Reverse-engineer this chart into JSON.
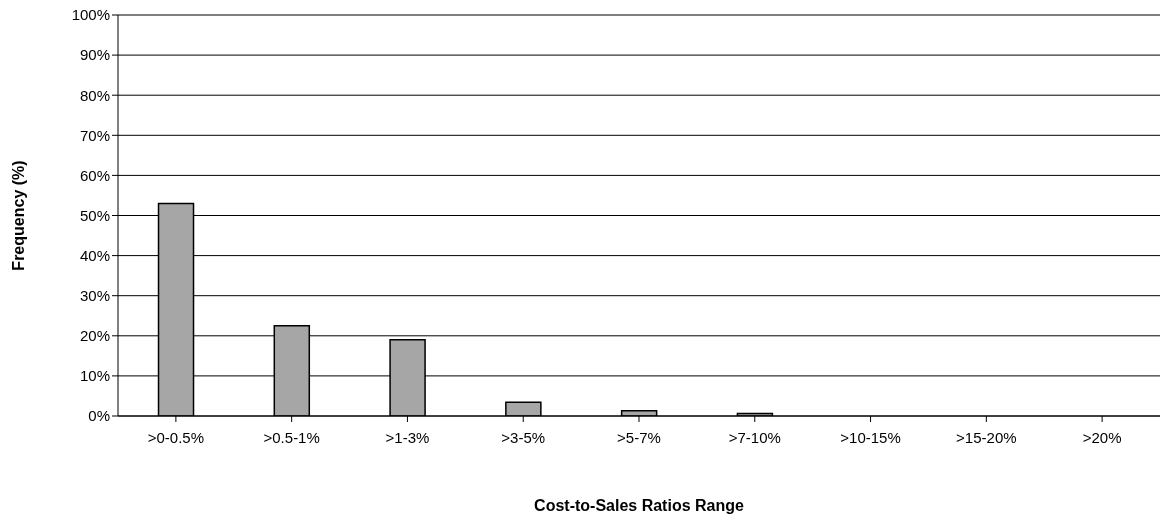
{
  "chart_data": {
    "type": "bar",
    "xlabel": "Cost-to-Sales Ratios Range",
    "ylabel": "Frequency (%)",
    "categories": [
      ">0-0.5%",
      ">0.5-1%",
      ">1-3%",
      ">3-5%",
      ">5-7%",
      ">7-10%",
      ">10-15%",
      ">15-20%",
      ">20%"
    ],
    "values": [
      53,
      22.5,
      19,
      3.4,
      1.3,
      0.6,
      0,
      0,
      0
    ],
    "color": "#a6a6a6",
    "ylim": [
      0,
      100
    ],
    "yticks": [
      {
        "value": 0,
        "label": "0%"
      },
      {
        "value": 10,
        "label": "10%"
      },
      {
        "value": 20,
        "label": "20%"
      },
      {
        "value": 30,
        "label": "30%"
      },
      {
        "value": 40,
        "label": "40%"
      },
      {
        "value": 50,
        "label": "50%"
      },
      {
        "value": 60,
        "label": "60%"
      },
      {
        "value": 70,
        "label": "70%"
      },
      {
        "value": 80,
        "label": "80%"
      },
      {
        "value": 90,
        "label": "90%"
      },
      {
        "value": 100,
        "label": "100%"
      }
    ],
    "grid": "y"
  }
}
